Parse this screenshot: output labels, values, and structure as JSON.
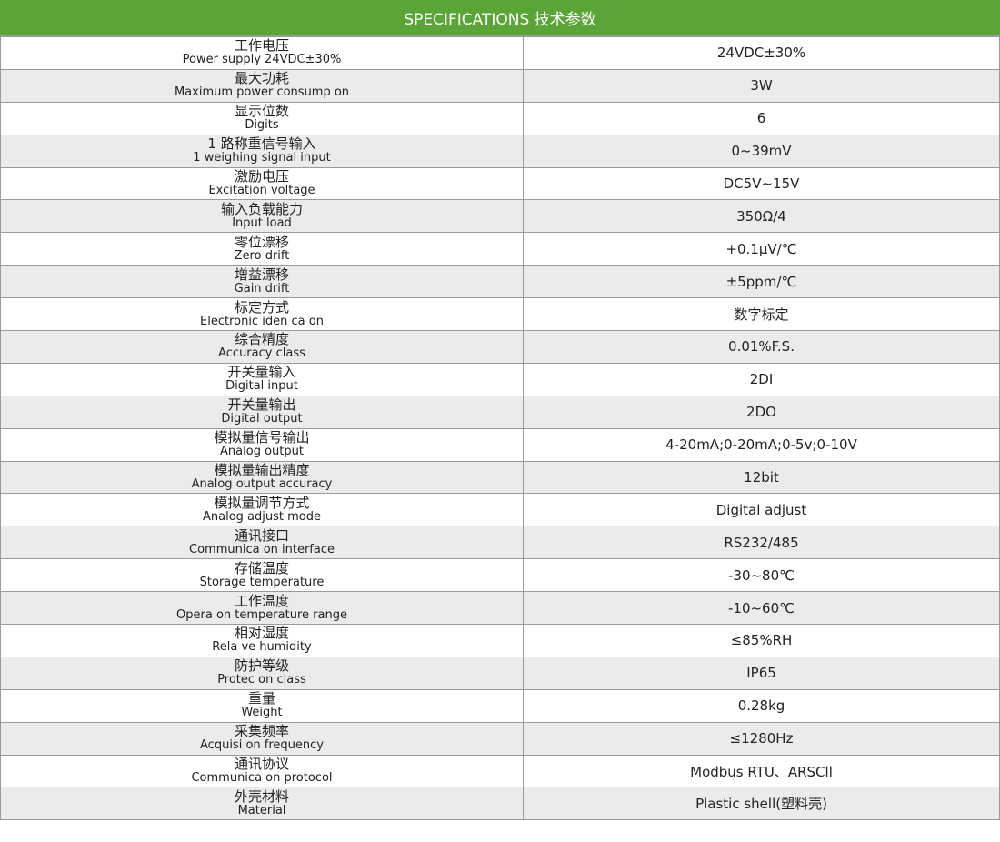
{
  "header": {
    "title": "SPECIFICATIONS  技术参数"
  },
  "colors": {
    "header_bg": "#5ba538",
    "row_alt": "#ebebeb"
  },
  "rows": [
    {
      "zh": "工作电压",
      "en": "Power supply 24VDC±30%",
      "value": "24VDC±30%"
    },
    {
      "zh": "最大功耗",
      "en": "Maximum power consump on",
      "value": "3W"
    },
    {
      "zh": "显示位数",
      "en": "Digits",
      "value": "6"
    },
    {
      "zh": "1 路称重信号输入",
      "en": "1 weighing signal input",
      "value": "0~39mV"
    },
    {
      "zh": "激励电压",
      "en": "Excitation voltage",
      "value": "DC5V~15V"
    },
    {
      "zh": "输入负载能力",
      "en": "Input load",
      "value": "350Ω/4"
    },
    {
      "zh": "零位漂移",
      "en": "Zero drift",
      "value": "+0.1μV/℃"
    },
    {
      "zh": "增益漂移",
      "en": "Gain drift",
      "value": "±5ppm/℃"
    },
    {
      "zh": "标定方式",
      "en": "Electronic iden ca on",
      "value": "数字标定"
    },
    {
      "zh": "综合精度",
      "en": "Accuracy class",
      "value": "0.01%F.S."
    },
    {
      "zh": "开关量输入",
      "en": "Digital input",
      "value": "2DI"
    },
    {
      "zh": "开关量输出",
      "en": "Digital output",
      "value": "2DO"
    },
    {
      "zh": "模拟量信号输出",
      "en": "Analog output",
      "value": "4-20mA;0-20mA;0-5v;0-10V"
    },
    {
      "zh": "模拟量输出精度",
      "en": "Analog output accuracy",
      "value": "12bit"
    },
    {
      "zh": "模拟量调节方式",
      "en": "Analog adjust mode",
      "value": "Digital adjust"
    },
    {
      "zh": "通讯接口",
      "en": "Communica on interface",
      "value": "RS232/485"
    },
    {
      "zh": "存储温度",
      "en": "Storage temperature",
      "value": "-30~80℃"
    },
    {
      "zh": "工作温度",
      "en": "Opera on temperature range",
      "value": "-10~60℃"
    },
    {
      "zh": "相对湿度",
      "en": "Rela ve humidity",
      "value": "≤85%RH"
    },
    {
      "zh": "防护等级",
      "en": "Protec on class",
      "value": "IP65"
    },
    {
      "zh": "重量",
      "en": "Weight",
      "value": "0.28kg"
    },
    {
      "zh": "采集频率",
      "en": "Acquisi on frequency",
      "value": "≤1280Hz"
    },
    {
      "zh": "通讯协议",
      "en": "Communica on protocol",
      "value": "Modbus RTU、ARSCll"
    },
    {
      "zh": "外壳材料",
      "en": "Material",
      "value": "Plastic shell(塑料壳)"
    }
  ]
}
